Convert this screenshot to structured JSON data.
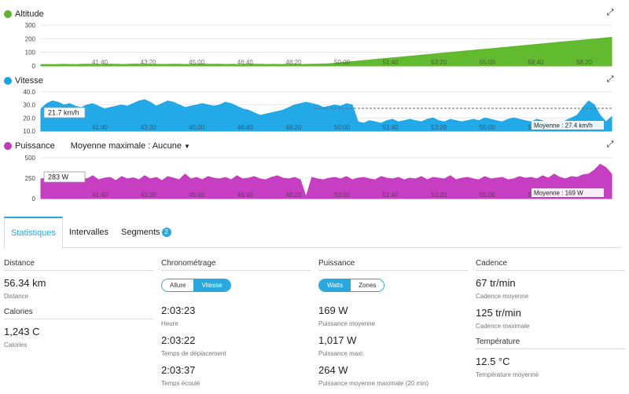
{
  "charts": [
    {
      "title": "Altitude",
      "color": "#5cb52c",
      "fill": "#62bb2e",
      "yticks": [
        "300",
        "200",
        "100",
        "0"
      ],
      "ymax": 300,
      "xticks": [
        "41:40",
        "43:20",
        "45:00",
        "46:40",
        "48:20",
        "50:00",
        "51:40",
        "53:20",
        "55:00",
        "56:40",
        "58:20"
      ],
      "values": [
        10,
        11,
        10,
        11,
        12,
        11,
        10,
        12,
        13,
        12,
        11,
        12,
        13,
        12,
        11,
        12,
        14,
        13,
        12,
        11,
        12,
        11,
        12,
        13,
        12,
        11,
        12,
        13,
        14,
        12,
        13,
        12,
        11,
        12,
        11,
        12,
        14,
        13,
        12,
        11,
        12,
        11,
        12,
        13,
        12,
        11,
        12,
        13,
        14,
        15,
        18,
        22,
        26,
        30,
        34,
        38,
        42,
        46,
        50,
        54,
        58,
        62,
        66,
        70,
        74,
        78,
        82,
        86,
        90,
        94,
        98,
        102,
        106,
        110,
        114,
        118,
        122,
        126,
        130,
        134,
        138,
        142,
        146,
        150,
        154,
        158,
        162,
        166,
        170,
        174,
        178,
        182,
        186,
        190,
        194,
        198,
        202,
        206,
        210
      ]
    },
    {
      "title": "Vitesse",
      "color": "#1ba4e4",
      "fill": "#22a9e8",
      "yticks": [
        "40.0",
        "30.0",
        "20.0",
        "10.0"
      ],
      "ymin": 10,
      "ymax": 40,
      "xticks": [
        "41:40",
        "43:20",
        "45:00",
        "46:40",
        "48:20",
        "50:00",
        "51:40",
        "53:20",
        "55:00",
        "56:40",
        "58:20"
      ],
      "avg_value": 27.4,
      "avg_label": "Moyenne : 27.4 km/h",
      "tooltip": "21.7 km/h",
      "values": [
        27,
        31,
        33,
        32,
        30,
        31,
        29,
        28,
        30,
        31,
        29,
        27,
        28,
        29,
        30,
        29,
        31,
        33,
        34,
        32,
        29,
        31,
        33,
        32,
        30,
        28,
        29,
        30,
        31,
        30,
        29,
        30,
        32,
        31,
        29,
        27,
        26,
        24,
        22,
        23,
        24,
        25,
        26,
        28,
        30,
        31,
        32,
        31,
        30,
        28,
        29,
        30,
        29,
        31,
        30,
        17,
        16,
        18,
        17,
        16,
        18,
        19,
        17,
        18,
        19,
        18,
        17,
        19,
        20,
        18,
        17,
        19,
        18,
        17,
        18,
        19,
        18,
        20,
        19,
        18,
        17,
        19,
        20,
        19,
        18,
        17,
        19,
        18,
        16,
        15,
        14,
        18,
        20,
        22,
        28,
        33,
        30,
        22,
        17,
        21
      ]
    },
    {
      "title": "Puissance",
      "extra": "Moyenne maximale : Aucune",
      "color": "#c43ab8",
      "fill": "#c63fc2",
      "yticks": [
        "500",
        "250",
        "0"
      ],
      "ymax": 500,
      "xticks": [
        "41:40",
        "43:20",
        "45:00",
        "46:40",
        "48:20",
        "50:00",
        "51:40",
        "53:20",
        "55:00",
        "56:40",
        "58:20"
      ],
      "tooltip": "283 W",
      "avg_label": "Moyenne : 169 W",
      "values": [
        240,
        250,
        210,
        300,
        230,
        270,
        220,
        260,
        240,
        280,
        230,
        250,
        260,
        220,
        270,
        240,
        255,
        230,
        280,
        240,
        260,
        220,
        270,
        250,
        230,
        300,
        240,
        260,
        230,
        270,
        250,
        240,
        260,
        230,
        280,
        240,
        250,
        270,
        240,
        230,
        260,
        280,
        250,
        240,
        260,
        230,
        20,
        260,
        240,
        230,
        250,
        260,
        240,
        270,
        230,
        250,
        260,
        240,
        230,
        270,
        250,
        240,
        260,
        230,
        250,
        240,
        270,
        230,
        260,
        250,
        240,
        280,
        230,
        250,
        260,
        240,
        230,
        270,
        240,
        250,
        260,
        230,
        240,
        270,
        250,
        260,
        240,
        280,
        250,
        300,
        260,
        240,
        270,
        260,
        290,
        300,
        350,
        420,
        380,
        300
      ]
    }
  ],
  "tabs": [
    {
      "label": "Statistiques"
    },
    {
      "label": "Intervalles"
    },
    {
      "label": "Segments",
      "badge": "2"
    }
  ],
  "columns": [
    {
      "sections": [
        {
          "title": "Distance",
          "stats": [
            {
              "value": "56.34 km",
              "label": "Distance"
            }
          ]
        },
        {
          "title": "Calories",
          "stats": [
            {
              "value": "1,243 C",
              "label": "Calories"
            }
          ]
        }
      ]
    },
    {
      "sections": [
        {
          "title": "Chronométrage",
          "toggle": [
            "Allure",
            "Vitesse"
          ],
          "toggle_active": 1,
          "stats": [
            {
              "value": "2:03:23",
              "label": "Heure"
            },
            {
              "value": "2:03:22",
              "label": "Temps de déplacement"
            },
            {
              "value": "2:03:37",
              "label": "Temps écoulé"
            }
          ]
        }
      ]
    },
    {
      "sections": [
        {
          "title": "Puissance",
          "toggle": [
            "Watts",
            "Zones"
          ],
          "toggle_active": 0,
          "stats": [
            {
              "value": "169 W",
              "label": "Puissance moyenne"
            },
            {
              "value": "1,017 W",
              "label": "Puissance maxi."
            },
            {
              "value": "264 W",
              "label": "Puissance moyenne maximale (20 min)"
            }
          ]
        }
      ]
    },
    {
      "sections": [
        {
          "title": "Cadence",
          "stats": [
            {
              "value": "67 tr/min",
              "label": "Cadence moyenne"
            },
            {
              "value": "125 tr/min",
              "label": "Cadence maximale"
            }
          ]
        },
        {
          "title": "Température",
          "stats": [
            {
              "value": "12.5 °C",
              "label": "Température moyenne"
            }
          ]
        }
      ]
    }
  ]
}
